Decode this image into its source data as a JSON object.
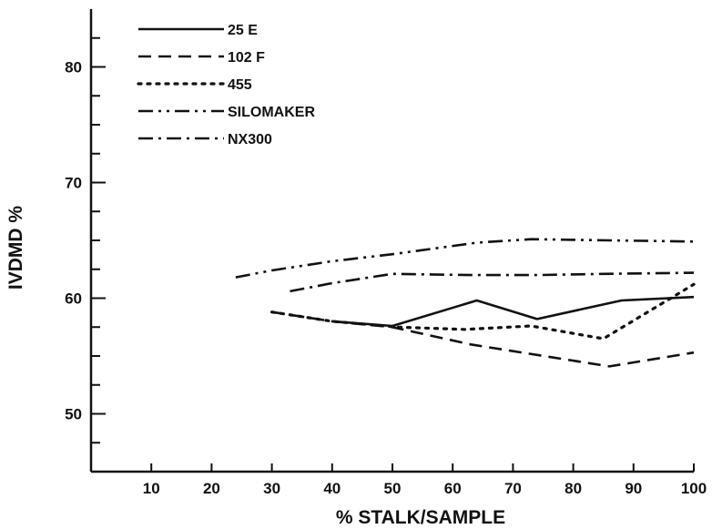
{
  "chart_data": {
    "type": "line",
    "title": "",
    "xlabel": "% STALK/SAMPLE",
    "ylabel": "IVDMD %",
    "xlim": [
      0,
      100
    ],
    "ylim": [
      45,
      85
    ],
    "xticks": [
      10,
      20,
      30,
      40,
      50,
      60,
      70,
      80,
      90,
      100
    ],
    "xtick_labels": [
      "10",
      "20",
      "30",
      "40",
      "50",
      "60",
      "70",
      "80",
      "90",
      "100"
    ],
    "yticks": [
      50,
      60,
      70,
      80
    ],
    "ytick_labels": [
      "50",
      "60",
      "70",
      "80"
    ],
    "grid": false,
    "legend_position": "top-left",
    "series": [
      {
        "name": "25 E",
        "style": "solid",
        "x": [
          40,
          50,
          64,
          74,
          88,
          100
        ],
        "y": [
          58.0,
          57.6,
          59.8,
          58.2,
          59.8,
          60.1
        ]
      },
      {
        "name": "102 F",
        "style": "dashed",
        "x": [
          30,
          40,
          50,
          63,
          86,
          100
        ],
        "y": [
          58.8,
          58.0,
          57.5,
          56.0,
          54.1,
          55.3
        ]
      },
      {
        "name": "455",
        "style": "dotted",
        "x": [
          30,
          40,
          51,
          62,
          73,
          85,
          100
        ],
        "y": [
          58.8,
          58.0,
          57.5,
          57.3,
          57.6,
          56.5,
          61.2
        ]
      },
      {
        "name": "SILOMAKER",
        "style": "dash-dot-dot",
        "x": [
          24,
          30,
          40,
          50,
          64,
          73,
          86,
          100
        ],
        "y": [
          61.8,
          62.4,
          63.2,
          63.8,
          64.8,
          65.1,
          65.0,
          64.9
        ]
      },
      {
        "name": "NX300",
        "style": "dash-dot",
        "x": [
          33,
          40,
          50,
          63,
          74,
          85,
          100
        ],
        "y": [
          60.6,
          61.3,
          62.1,
          62.0,
          62.0,
          62.1,
          62.2
        ]
      }
    ]
  }
}
